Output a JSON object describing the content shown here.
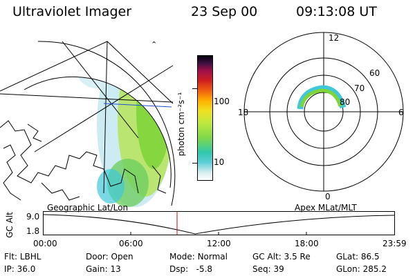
{
  "header": {
    "instrument": "Ultraviolet Imager",
    "date": "23 Sep 00",
    "time": "09:13:08 UT"
  },
  "geo_panel": {
    "label": "Geographic Lat/Lon",
    "compass_glyph": "⌃"
  },
  "colorbar": {
    "unit_label": "photon cm⁻²s⁻¹",
    "ticks": [
      "100",
      "10"
    ],
    "scale": "log"
  },
  "polar_panel": {
    "label": "Apex MLat/MLT",
    "mlt_labels": [
      "12",
      "18",
      "6",
      "0"
    ],
    "lat_labels": [
      "60",
      "70",
      "80"
    ]
  },
  "altitude_plot": {
    "ylabel": "GC Alt",
    "yticks": [
      "9.0",
      "1.8"
    ],
    "xticks": [
      "00:00",
      "06:00",
      "12:00",
      "18:00",
      "23:59"
    ],
    "current_time_marker": "09:13"
  },
  "status": {
    "row1": [
      {
        "label": "Flt:",
        "value": "LBHL"
      },
      {
        "label": "Door:",
        "value": "Open"
      },
      {
        "label": "Mode:",
        "value": "Normal"
      },
      {
        "label": "GC Alt:",
        "value": "3.5 Re"
      },
      {
        "label": "GLat:",
        "value": "86.5"
      }
    ],
    "row2": [
      {
        "label": "IP:",
        "value": "36.0"
      },
      {
        "label": "Gain:",
        "value": "13"
      },
      {
        "label": "Dsp:",
        "value": "-5.8"
      },
      {
        "label": "Seq:",
        "value": "39"
      },
      {
        "label": "GLon:",
        "value": "285.2"
      }
    ]
  },
  "colors": {
    "line": "#000000",
    "time_marker": "#e00000",
    "aurora_high": "#7fd43a",
    "aurora_mid": "#c8e850",
    "aurora_low": "#40c8d8"
  }
}
